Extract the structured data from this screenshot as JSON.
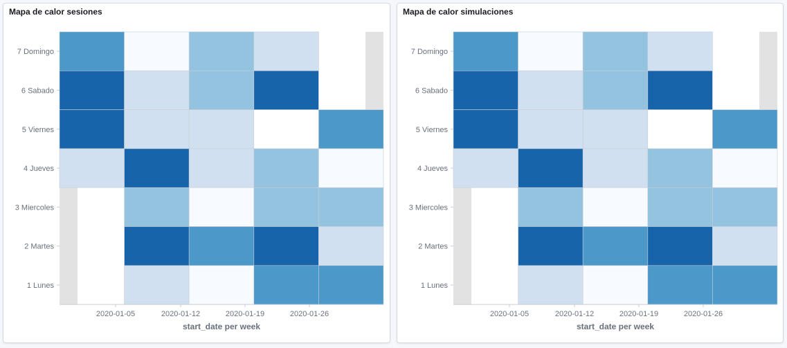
{
  "panels": [
    {
      "title": "Mapa de calor sesiones",
      "chart_data": {
        "type": "heatmap",
        "xlabel": "start_date per week",
        "x_ticks": [
          "2020-01-05",
          "2020-01-12",
          "2020-01-19",
          "2020-01-26"
        ],
        "y_categories": [
          "7 Domingo",
          "6 Sabado",
          "5 Viernes",
          "4 Jueves",
          "3 Miercoles",
          "2 Martes",
          "1 Lunes"
        ],
        "color_scale": [
          "#ffffff",
          "#f7fafe",
          "#d1e0f1",
          "#94c3e0",
          "#4b98c9",
          "#1864aa"
        ],
        "week_columns": [
          "col1",
          "col2",
          "col3",
          "col4",
          "col5"
        ],
        "cells": [
          [
            4,
            1,
            3,
            2,
            null
          ],
          [
            5,
            2,
            3,
            5,
            null
          ],
          [
            5,
            2,
            2,
            0,
            4
          ],
          [
            2,
            5,
            2,
            3,
            1
          ],
          [
            null,
            3,
            1,
            3,
            3
          ],
          [
            null,
            5,
            4,
            5,
            2
          ],
          [
            null,
            2,
            1,
            4,
            4
          ]
        ]
      }
    },
    {
      "title": "Mapa de calor simulaciones",
      "chart_data": {
        "type": "heatmap",
        "xlabel": "start_date per week",
        "x_ticks": [
          "2020-01-05",
          "2020-01-12",
          "2020-01-19",
          "2020-01-26"
        ],
        "y_categories": [
          "7 Domingo",
          "6 Sabado",
          "5 Viernes",
          "4 Jueves",
          "3 Miercoles",
          "2 Martes",
          "1 Lunes"
        ],
        "color_scale": [
          "#ffffff",
          "#f7fafe",
          "#d1e0f1",
          "#94c3e0",
          "#4b98c9",
          "#1864aa"
        ],
        "week_columns": [
          "col1",
          "col2",
          "col3",
          "col4",
          "col5"
        ],
        "cells": [
          [
            4,
            1,
            3,
            2,
            null
          ],
          [
            5,
            2,
            3,
            5,
            null
          ],
          [
            5,
            2,
            2,
            0,
            4
          ],
          [
            2,
            5,
            2,
            3,
            1
          ],
          [
            null,
            3,
            1,
            3,
            3
          ],
          [
            null,
            5,
            4,
            5,
            2
          ],
          [
            null,
            2,
            1,
            4,
            4
          ]
        ]
      }
    }
  ]
}
